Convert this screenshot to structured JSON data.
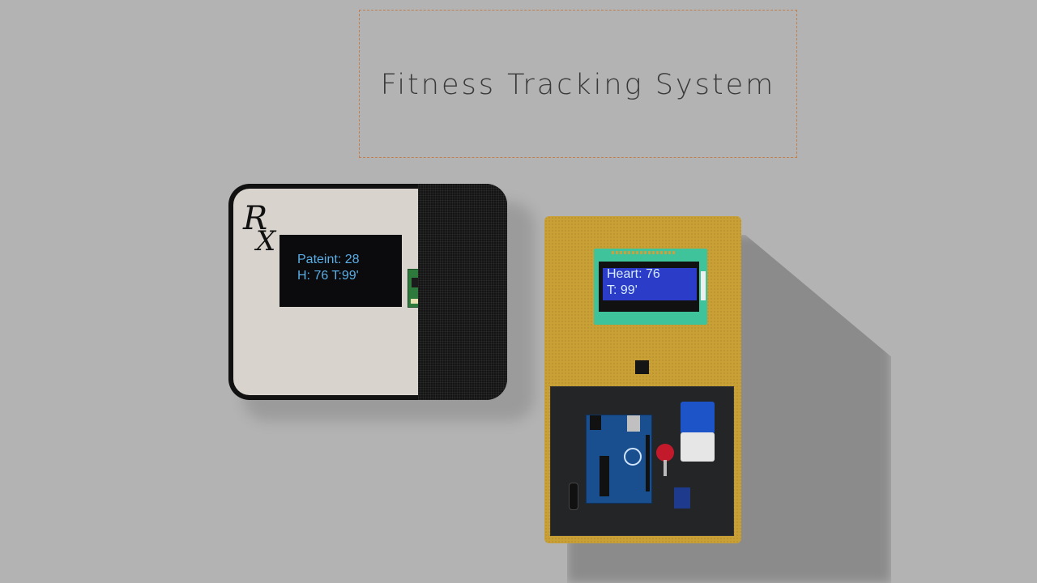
{
  "title": "Fitness Tracking System",
  "left_device": {
    "logo_text": "RX",
    "oled_line1": "Pateint: 28",
    "oled_line2": "H: 76 T:99'"
  },
  "right_device": {
    "lcd_line1": "Heart: 76",
    "lcd_line2": "T: 99'"
  },
  "colors": {
    "background": "#b3b3b3",
    "oled_text": "#5aaee6",
    "lcd_screen": "#2a3cc8",
    "enclosure": "#c9a035"
  }
}
